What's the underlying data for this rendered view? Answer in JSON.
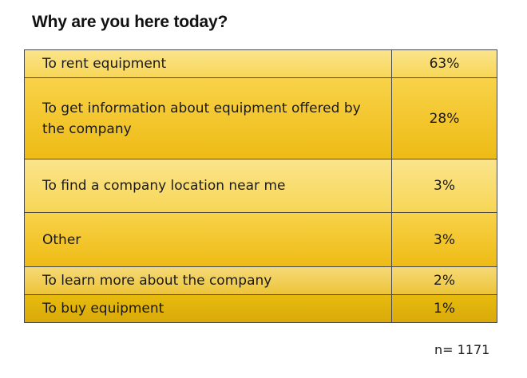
{
  "title": "Why are you here today?",
  "sample_size": "n= 1171",
  "colors": {
    "row_light_top": "#fbe48c",
    "row_light_bottom": "#f7d655",
    "row_dark_top": "#f8d249",
    "row_dark_bottom": "#eebb14",
    "last_row_top": "#e7bb0d",
    "last_row_bottom": "#d9a90a",
    "border": "#4a4a4a"
  },
  "chart_data": {
    "type": "table",
    "columns": [
      "answer",
      "percent"
    ],
    "rows": [
      {
        "answer": "To rent equipment",
        "percent": "63%",
        "value": 63
      },
      {
        "answer": "To get information about equipment offered by the company",
        "percent": "28%",
        "value": 28
      },
      {
        "answer": "To find a company location near me",
        "percent": "3%",
        "value": 3
      },
      {
        "answer": "Other",
        "percent": "3%",
        "value": 3
      },
      {
        "answer": "To learn more about the company",
        "percent": "2%",
        "value": 2
      },
      {
        "answer": "To buy equipment",
        "percent": "1%",
        "value": 1
      }
    ]
  }
}
